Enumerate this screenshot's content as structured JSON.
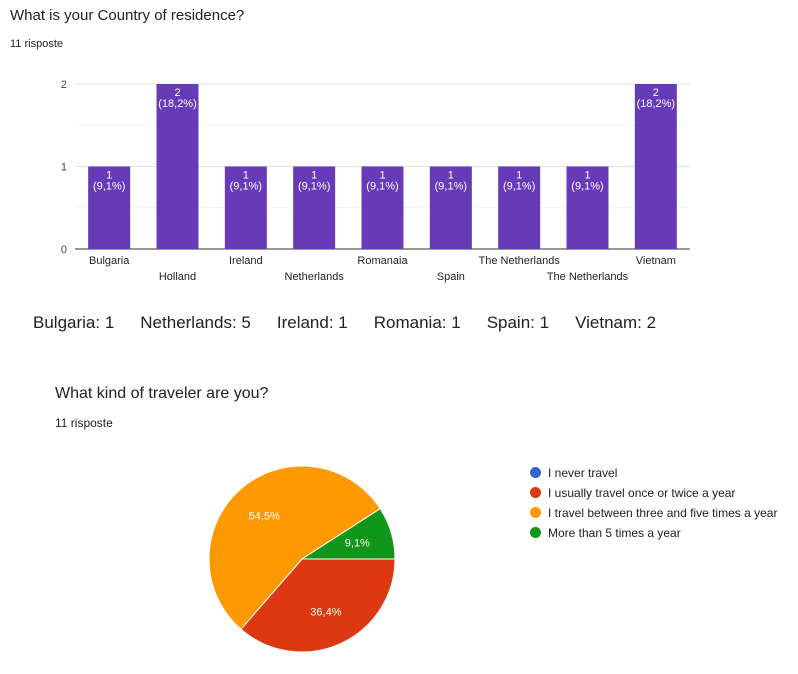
{
  "chart_data": [
    {
      "type": "bar",
      "title": "What is your Country of residence?",
      "subtitle": "11 risposte",
      "categories": [
        "Bulgaria",
        "Holland",
        "Ireland",
        "Netherlands",
        "Romanaia",
        "Spain",
        "The Netherlands",
        "The Netherlands",
        "Vietnam"
      ],
      "values": [
        1,
        2,
        1,
        1,
        1,
        1,
        1,
        1,
        2
      ],
      "data_labels": [
        "1 (9,1%)",
        "2 (18,2%)",
        "1 (9,1%)",
        "1 (9,1%)",
        "1 (9,1%)",
        "1 (9,1%)",
        "1 (9,1%)",
        "1 (9,1%)",
        "2 (18,2%)"
      ],
      "ylim": [
        0,
        2
      ],
      "yticks": [
        0,
        1,
        2
      ],
      "grid": true,
      "color": "#673ab7"
    },
    {
      "type": "pie",
      "title": "What kind of traveler are you?",
      "subtitle": "11 risposte",
      "series": [
        {
          "name": "I never travel",
          "value": 0,
          "label": "",
          "color": "#3366cc"
        },
        {
          "name": "I usually travel once or twice a year",
          "value": 36.4,
          "label": "36,4%",
          "color": "#dc3912"
        },
        {
          "name": "I travel between three and five times a year",
          "value": 54.5,
          "label": "54,5%",
          "color": "#ff9900"
        },
        {
          "name": "More than 5 times a year",
          "value": 9.1,
          "label": "9,1%",
          "color": "#109618"
        }
      ],
      "legend": "right"
    }
  ],
  "summary": [
    "Bulgaria: 1",
    "Netherlands: 5",
    "Ireland: 1",
    "Romania: 1",
    "Spain: 1",
    "Vietnam: 2"
  ]
}
